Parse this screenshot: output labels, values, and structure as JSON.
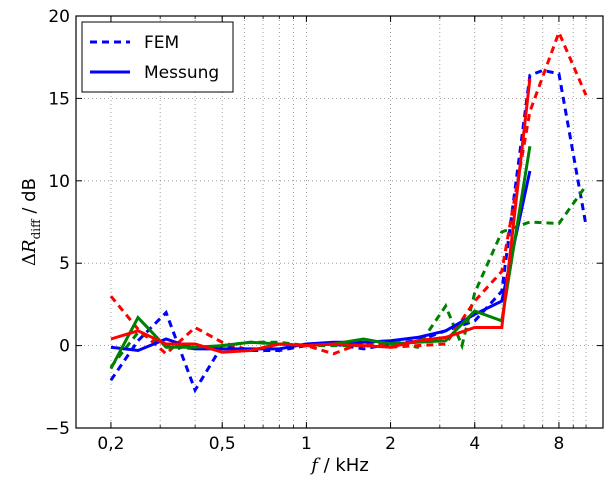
{
  "chart_data": {
    "type": "line",
    "xscale": "log",
    "xlim": [
      0.15,
      11.5
    ],
    "ylim": [
      -5,
      20
    ],
    "grid": true,
    "xlabel_var": "f",
    "xlabel_unit": " / kHz",
    "ylabel_prefix": "Δ",
    "ylabel_var": "R",
    "ylabel_sub": "diff",
    "ylabel_unit": " / dB",
    "x_ticks": [
      {
        "value": 0.2,
        "label": "0,2"
      },
      {
        "value": 0.5,
        "label": "0,5"
      },
      {
        "value": 1,
        "label": "1"
      },
      {
        "value": 2,
        "label": "2"
      },
      {
        "value": 4,
        "label": "4"
      },
      {
        "value": 8,
        "label": "8"
      }
    ],
    "y_ticks": [
      {
        "value": -5,
        "label": "−5"
      },
      {
        "value": 0,
        "label": "0"
      },
      {
        "value": 5,
        "label": "5"
      },
      {
        "value": 10,
        "label": "10"
      },
      {
        "value": 15,
        "label": "15"
      },
      {
        "value": 20,
        "label": "20"
      }
    ],
    "legend": {
      "position": "top-left",
      "entries": [
        {
          "label": "FEM",
          "style": "dashed",
          "color": "#0000ff"
        },
        {
          "label": "Messung",
          "style": "solid",
          "color": "#0000ff"
        }
      ]
    },
    "series": [
      {
        "color": "#0000ff",
        "style": "dashed",
        "points": [
          [
            0.2,
            -2.1
          ],
          [
            0.25,
            0.3
          ],
          [
            0.315,
            2.0
          ],
          [
            0.4,
            -2.7
          ],
          [
            0.5,
            0.0
          ],
          [
            0.63,
            -0.3
          ],
          [
            0.8,
            -0.3
          ],
          [
            1.0,
            0.0
          ],
          [
            1.25,
            0.1
          ],
          [
            1.6,
            -0.2
          ],
          [
            2.0,
            0.1
          ],
          [
            2.5,
            0.3
          ],
          [
            3.15,
            0.9
          ],
          [
            4.0,
            1.5
          ],
          [
            5.0,
            3.3
          ],
          [
            6.3,
            16.4
          ],
          [
            7.0,
            16.7
          ],
          [
            8.0,
            16.5
          ],
          [
            10.0,
            7.3
          ]
        ]
      },
      {
        "color": "#008000",
        "style": "dashed",
        "points": [
          [
            0.2,
            -1.3
          ],
          [
            0.25,
            0.8
          ],
          [
            0.315,
            0.0
          ],
          [
            0.4,
            -0.2
          ],
          [
            0.5,
            0.0
          ],
          [
            0.63,
            0.2
          ],
          [
            0.8,
            0.2
          ],
          [
            1.0,
            0.0
          ],
          [
            1.25,
            0.0
          ],
          [
            1.6,
            0.0
          ],
          [
            2.0,
            0.2
          ],
          [
            2.5,
            -0.1
          ],
          [
            3.15,
            2.4
          ],
          [
            3.6,
            0.0
          ],
          [
            4.0,
            3.2
          ],
          [
            5.0,
            6.9
          ],
          [
            6.3,
            7.5
          ],
          [
            8.0,
            7.4
          ],
          [
            10.0,
            9.7
          ]
        ]
      },
      {
        "color": "#ff0000",
        "style": "dashed",
        "points": [
          [
            0.2,
            3.0
          ],
          [
            0.25,
            1.0
          ],
          [
            0.315,
            -0.5
          ],
          [
            0.4,
            1.1
          ],
          [
            0.5,
            0.2
          ],
          [
            0.63,
            -0.3
          ],
          [
            0.8,
            0.1
          ],
          [
            1.0,
            0.0
          ],
          [
            1.25,
            -0.5
          ],
          [
            1.6,
            0.2
          ],
          [
            2.0,
            -0.1
          ],
          [
            2.5,
            0.0
          ],
          [
            3.15,
            0.1
          ],
          [
            4.0,
            2.7
          ],
          [
            5.0,
            4.5
          ],
          [
            6.3,
            14.2
          ],
          [
            8.0,
            19.0
          ],
          [
            10.0,
            15.2
          ]
        ]
      },
      {
        "color": "#0000ff",
        "style": "solid",
        "points": [
          [
            0.2,
            -0.1
          ],
          [
            0.25,
            -0.3
          ],
          [
            0.315,
            0.4
          ],
          [
            0.4,
            -0.2
          ],
          [
            0.5,
            -0.2
          ],
          [
            0.63,
            -0.2
          ],
          [
            0.8,
            -0.2
          ],
          [
            1.0,
            0.1
          ],
          [
            1.25,
            0.2
          ],
          [
            1.6,
            0.2
          ],
          [
            2.0,
            0.3
          ],
          [
            2.5,
            0.5
          ],
          [
            3.15,
            0.9
          ],
          [
            4.0,
            1.9
          ],
          [
            5.0,
            2.7
          ],
          [
            6.3,
            10.6
          ]
        ]
      },
      {
        "color": "#008000",
        "style": "solid",
        "points": [
          [
            0.2,
            -1.4
          ],
          [
            0.25,
            1.7
          ],
          [
            0.315,
            -0.1
          ],
          [
            0.4,
            -0.1
          ],
          [
            0.5,
            0.0
          ],
          [
            0.63,
            0.2
          ],
          [
            0.8,
            0.1
          ],
          [
            1.0,
            0.0
          ],
          [
            1.25,
            0.1
          ],
          [
            1.6,
            0.4
          ],
          [
            2.0,
            0.1
          ],
          [
            2.5,
            0.2
          ],
          [
            3.15,
            0.3
          ],
          [
            4.0,
            2.1
          ],
          [
            5.0,
            1.5
          ],
          [
            6.3,
            12.1
          ]
        ]
      },
      {
        "color": "#ff0000",
        "style": "solid",
        "points": [
          [
            0.2,
            0.4
          ],
          [
            0.25,
            0.9
          ],
          [
            0.315,
            0.1
          ],
          [
            0.4,
            0.1
          ],
          [
            0.5,
            -0.4
          ],
          [
            0.63,
            -0.3
          ],
          [
            0.8,
            0.1
          ],
          [
            1.0,
            0.0
          ],
          [
            1.25,
            0.1
          ],
          [
            1.6,
            0.0
          ],
          [
            2.0,
            -0.1
          ],
          [
            2.5,
            0.3
          ],
          [
            3.15,
            0.5
          ],
          [
            4.0,
            1.1
          ],
          [
            5.0,
            1.1
          ],
          [
            6.3,
            16.2
          ]
        ]
      }
    ]
  }
}
